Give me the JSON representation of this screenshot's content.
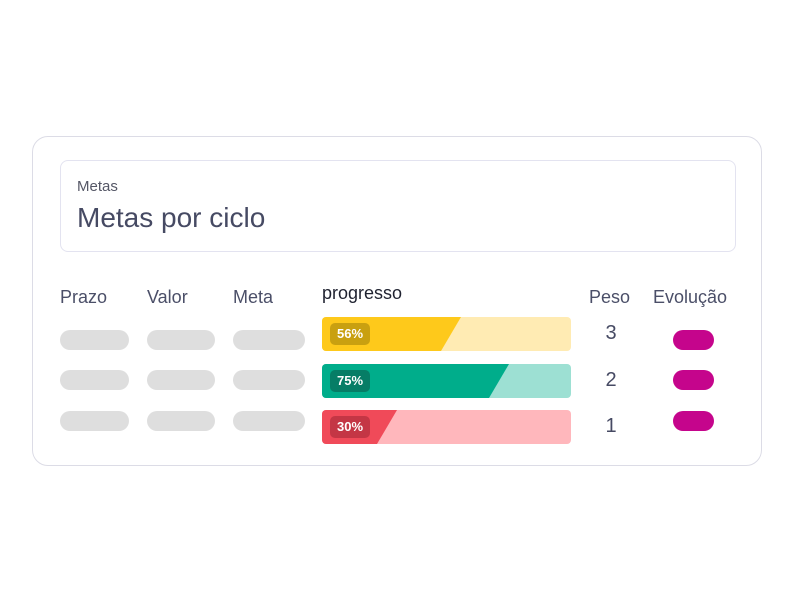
{
  "card": {
    "label": "Metas",
    "title": "Metas por ciclo"
  },
  "columns": {
    "prazo": "Prazo",
    "valor": "Valor",
    "meta": "Meta",
    "progresso": "progresso",
    "peso": "Peso",
    "evolucao": "Evolução"
  },
  "rows": [
    {
      "progress_label": "56%",
      "progress_value": 0.56,
      "weight": "3",
      "colors": {
        "track": "#ffebb3",
        "fill": "#fec91b",
        "badge": "#c9a010",
        "evolution": "#c5058c"
      }
    },
    {
      "progress_label": "75%",
      "progress_value": 0.75,
      "weight": "2",
      "colors": {
        "track": "#9de0d3",
        "fill": "#00ad8b",
        "badge": "#067d66",
        "evolution": "#c5058c"
      }
    },
    {
      "progress_label": "30%",
      "progress_value": 0.3,
      "weight": "1",
      "colors": {
        "track": "#ffb7bc",
        "fill": "#f04a59",
        "badge": "#c43645",
        "evolution": "#c5058c"
      }
    }
  ],
  "placeholder_color": "#dedede"
}
